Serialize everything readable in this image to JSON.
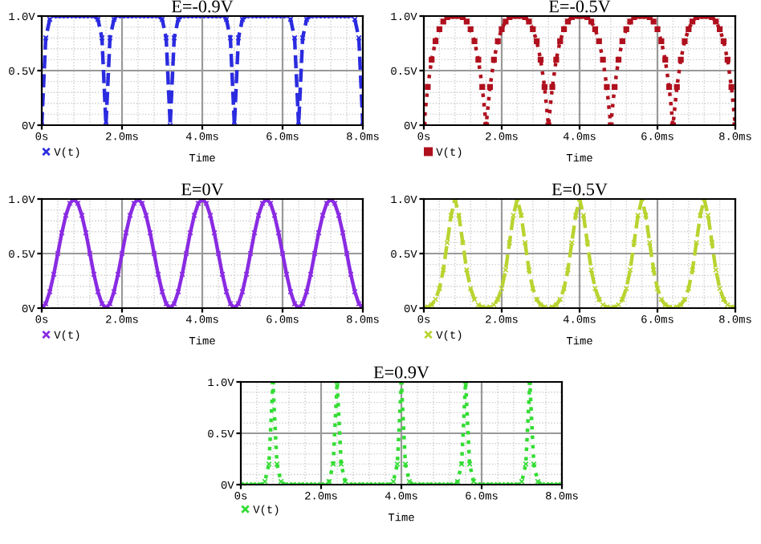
{
  "chart_data": [
    {
      "type": "line",
      "title": "E=-0.9V",
      "xlabel": "Time",
      "xlim": [
        0,
        8
      ],
      "ylim": [
        0,
        1
      ],
      "xticks": [
        {
          "value": 0,
          "label": "0s"
        },
        {
          "value": 2,
          "label": "2.0ms"
        },
        {
          "value": 4,
          "label": "4.0ms"
        },
        {
          "value": 6,
          "label": "6.0ms"
        },
        {
          "value": 8,
          "label": "8.0ms"
        }
      ],
      "yticks": [
        {
          "value": 0,
          "label": "0V"
        },
        {
          "value": 0.5,
          "label": "0.5V"
        },
        {
          "value": 1,
          "label": "1.0V"
        }
      ],
      "grid": true,
      "legend": "bottom left",
      "marker": "cross",
      "line_style": "dashed",
      "x": [
        0,
        0.1,
        0.2,
        0.3,
        0.4,
        0.5,
        0.6,
        0.7,
        0.8,
        0.9,
        1.0,
        1.1,
        1.2,
        1.3,
        1.4,
        1.5,
        1.6,
        1.7,
        1.8,
        1.9,
        2.0,
        2.1,
        2.2,
        2.3,
        2.4,
        2.5,
        2.6,
        2.7,
        2.8,
        2.9,
        3.0,
        3.1,
        3.2,
        3.3,
        3.4,
        3.5,
        3.6,
        3.7,
        3.8,
        3.9,
        4.0,
        4.1,
        4.2,
        4.3,
        4.4,
        4.5,
        4.6,
        4.7,
        4.8,
        4.9,
        5.0,
        5.1,
        5.2,
        5.3,
        5.4,
        5.5,
        5.6,
        5.7,
        5.8,
        5.9,
        6.0,
        6.1,
        6.2,
        6.3,
        6.4,
        6.5,
        6.6,
        6.7,
        6.8,
        6.9,
        7.0,
        7.1,
        7.2,
        7.3,
        7.4,
        7.5,
        7.6,
        7.7,
        7.8,
        7.9,
        8.0
      ],
      "series": [
        {
          "name": "V(t)",
          "color": "#2b2be0",
          "values": [
            0,
            0.8,
            0.97,
            1,
            1,
            1,
            1,
            1,
            1,
            1,
            1,
            1,
            1,
            1,
            0.97,
            0.8,
            0,
            0.8,
            0.97,
            1,
            1,
            1,
            1,
            1,
            1,
            1,
            1,
            1,
            1,
            1,
            0.97,
            0.8,
            0,
            0.8,
            0.97,
            1,
            1,
            1,
            1,
            1,
            1,
            1,
            1,
            1,
            1,
            1,
            0.97,
            0.8,
            0,
            0.8,
            0.97,
            1,
            1,
            1,
            1,
            1,
            1,
            1,
            1,
            1,
            1,
            1,
            0.97,
            0.8,
            0,
            0.8,
            0.97,
            1,
            1,
            1,
            1,
            1,
            1,
            1,
            1,
            1,
            1,
            1,
            0.97,
            0.8,
            0
          ]
        }
      ]
    },
    {
      "type": "line",
      "title": "E=-0.5V",
      "xlabel": "Time",
      "xlim": [
        0,
        8
      ],
      "ylim": [
        0,
        1
      ],
      "xticks": [
        {
          "value": 0,
          "label": "0s"
        },
        {
          "value": 2,
          "label": "2.0ms"
        },
        {
          "value": 4,
          "label": "4.0ms"
        },
        {
          "value": 6,
          "label": "6.0ms"
        },
        {
          "value": 8,
          "label": "8.0ms"
        }
      ],
      "yticks": [
        {
          "value": 0,
          "label": "0V"
        },
        {
          "value": 0.5,
          "label": "0.5V"
        },
        {
          "value": 1,
          "label": "1.0V"
        }
      ],
      "grid": true,
      "legend": "bottom left",
      "marker": "square",
      "line_style": "dotted",
      "x": [
        0,
        0.1,
        0.2,
        0.3,
        0.4,
        0.5,
        0.6,
        0.7,
        0.8,
        0.9,
        1.0,
        1.1,
        1.2,
        1.3,
        1.4,
        1.5,
        1.6,
        1.7,
        1.8,
        1.9,
        2.0,
        2.1,
        2.2,
        2.3,
        2.4,
        2.5,
        2.6,
        2.7,
        2.8,
        2.9,
        3.0,
        3.1,
        3.2,
        3.3,
        3.4,
        3.5,
        3.6,
        3.7,
        3.8,
        3.9,
        4.0,
        4.1,
        4.2,
        4.3,
        4.4,
        4.5,
        4.6,
        4.7,
        4.8,
        4.9,
        5.0,
        5.1,
        5.2,
        5.3,
        5.4,
        5.5,
        5.6,
        5.7,
        5.8,
        5.9,
        6.0,
        6.1,
        6.2,
        6.3,
        6.4,
        6.5,
        6.6,
        6.7,
        6.8,
        6.9,
        7.0,
        7.1,
        7.2,
        7.3,
        7.4,
        7.5,
        7.6,
        7.7,
        7.8,
        7.9,
        8.0
      ],
      "series": [
        {
          "name": "V(t)",
          "color": "#b0101e",
          "values": [
            0,
            0.35,
            0.6,
            0.77,
            0.88,
            0.95,
            0.99,
            1,
            1,
            1,
            0.99,
            0.95,
            0.88,
            0.77,
            0.6,
            0.35,
            0,
            0.35,
            0.6,
            0.77,
            0.88,
            0.95,
            0.99,
            1,
            1,
            1,
            0.99,
            0.95,
            0.88,
            0.77,
            0.6,
            0.35,
            0,
            0.35,
            0.6,
            0.77,
            0.88,
            0.95,
            0.99,
            1,
            1,
            1,
            0.99,
            0.95,
            0.88,
            0.77,
            0.6,
            0.35,
            0,
            0.35,
            0.6,
            0.77,
            0.88,
            0.95,
            0.99,
            1,
            1,
            1,
            0.99,
            0.95,
            0.88,
            0.77,
            0.6,
            0.35,
            0,
            0.35,
            0.6,
            0.77,
            0.88,
            0.95,
            0.99,
            1,
            1,
            1,
            0.99,
            0.95,
            0.88,
            0.77,
            0.6,
            0.35,
            0
          ]
        }
      ]
    },
    {
      "type": "line",
      "title": "E=0V",
      "xlabel": "Time",
      "xlim": [
        0,
        8
      ],
      "ylim": [
        0,
        1
      ],
      "xticks": [
        {
          "value": 0,
          "label": "0s"
        },
        {
          "value": 2,
          "label": "2.0ms"
        },
        {
          "value": 4,
          "label": "4.0ms"
        },
        {
          "value": 6,
          "label": "6.0ms"
        },
        {
          "value": 8,
          "label": "8.0ms"
        }
      ],
      "yticks": [
        {
          "value": 0,
          "label": "0V"
        },
        {
          "value": 0.5,
          "label": "0.5V"
        },
        {
          "value": 1,
          "label": "1.0V"
        }
      ],
      "grid": true,
      "legend": "bottom left",
      "marker": "cross",
      "line_style": "solid",
      "x": [
        0,
        0.1,
        0.2,
        0.3,
        0.4,
        0.5,
        0.6,
        0.7,
        0.8,
        0.9,
        1.0,
        1.1,
        1.2,
        1.3,
        1.4,
        1.5,
        1.6,
        1.7,
        1.8,
        1.9,
        2.0,
        2.1,
        2.2,
        2.3,
        2.4,
        2.5,
        2.6,
        2.7,
        2.8,
        2.9,
        3.0,
        3.1,
        3.2,
        3.3,
        3.4,
        3.5,
        3.6,
        3.7,
        3.8,
        3.9,
        4.0,
        4.1,
        4.2,
        4.3,
        4.4,
        4.5,
        4.6,
        4.7,
        4.8,
        4.9,
        5.0,
        5.1,
        5.2,
        5.3,
        5.4,
        5.5,
        5.6,
        5.7,
        5.8,
        5.9,
        6.0,
        6.1,
        6.2,
        6.3,
        6.4,
        6.5,
        6.6,
        6.7,
        6.8,
        6.9,
        7.0,
        7.1,
        7.2,
        7.3,
        7.4,
        7.5,
        7.6,
        7.7,
        7.8,
        7.9,
        8.0
      ],
      "series": [
        {
          "name": "V(t)",
          "color": "#8a2be2",
          "values": [
            0,
            0.04,
            0.15,
            0.31,
            0.5,
            0.69,
            0.85,
            0.96,
            1,
            0.96,
            0.85,
            0.69,
            0.5,
            0.31,
            0.15,
            0.04,
            0,
            0.04,
            0.15,
            0.31,
            0.5,
            0.69,
            0.85,
            0.96,
            1,
            0.96,
            0.85,
            0.69,
            0.5,
            0.31,
            0.15,
            0.04,
            0,
            0.04,
            0.15,
            0.31,
            0.5,
            0.69,
            0.85,
            0.96,
            1,
            0.96,
            0.85,
            0.69,
            0.5,
            0.31,
            0.15,
            0.04,
            0,
            0.04,
            0.15,
            0.31,
            0.5,
            0.69,
            0.85,
            0.96,
            1,
            0.96,
            0.85,
            0.69,
            0.5,
            0.31,
            0.15,
            0.04,
            0,
            0.04,
            0.15,
            0.31,
            0.5,
            0.69,
            0.85,
            0.96,
            1,
            0.96,
            0.85,
            0.69,
            0.5,
            0.31,
            0.15,
            0.04,
            0
          ]
        }
      ]
    },
    {
      "type": "line",
      "title": "E=0.5V",
      "xlabel": "Time",
      "xlim": [
        0,
        8
      ],
      "ylim": [
        0,
        1
      ],
      "xticks": [
        {
          "value": 0,
          "label": "0s"
        },
        {
          "value": 2,
          "label": "2.0ms"
        },
        {
          "value": 4,
          "label": "4.0ms"
        },
        {
          "value": 6,
          "label": "6.0ms"
        },
        {
          "value": 8,
          "label": "8.0ms"
        }
      ],
      "yticks": [
        {
          "value": 0,
          "label": "0V"
        },
        {
          "value": 0.5,
          "label": "0.5V"
        },
        {
          "value": 1,
          "label": "1.0V"
        }
      ],
      "grid": true,
      "legend": "bottom left",
      "marker": "cross",
      "line_style": "dashed",
      "x": [
        0,
        0.1,
        0.2,
        0.3,
        0.4,
        0.5,
        0.6,
        0.7,
        0.8,
        0.9,
        1.0,
        1.1,
        1.2,
        1.3,
        1.4,
        1.5,
        1.6,
        1.7,
        1.8,
        1.9,
        2.0,
        2.1,
        2.2,
        2.3,
        2.4,
        2.5,
        2.6,
        2.7,
        2.8,
        2.9,
        3.0,
        3.1,
        3.2,
        3.3,
        3.4,
        3.5,
        3.6,
        3.7,
        3.8,
        3.9,
        4.0,
        4.1,
        4.2,
        4.3,
        4.4,
        4.5,
        4.6,
        4.7,
        4.8,
        4.9,
        5.0,
        5.1,
        5.2,
        5.3,
        5.4,
        5.5,
        5.6,
        5.7,
        5.8,
        5.9,
        6.0,
        6.1,
        6.2,
        6.3,
        6.4,
        6.5,
        6.6,
        6.7,
        6.8,
        6.9,
        7.0,
        7.1,
        7.2,
        7.3,
        7.4,
        7.5,
        7.6,
        7.7,
        7.8,
        7.9,
        8.0
      ],
      "series": [
        {
          "name": "V(t)",
          "color": "#b8d430",
          "values": [
            0,
            0.01,
            0.03,
            0.08,
            0.18,
            0.35,
            0.6,
            0.85,
            1,
            0.85,
            0.6,
            0.35,
            0.18,
            0.08,
            0.03,
            0.01,
            0,
            0.01,
            0.03,
            0.08,
            0.18,
            0.35,
            0.6,
            0.85,
            1,
            0.85,
            0.6,
            0.35,
            0.18,
            0.08,
            0.03,
            0.01,
            0,
            0.01,
            0.03,
            0.08,
            0.18,
            0.35,
            0.6,
            0.85,
            1,
            0.85,
            0.6,
            0.35,
            0.18,
            0.08,
            0.03,
            0.01,
            0,
            0.01,
            0.03,
            0.08,
            0.18,
            0.35,
            0.6,
            0.85,
            1,
            0.85,
            0.6,
            0.35,
            0.18,
            0.08,
            0.03,
            0.01,
            0,
            0.01,
            0.03,
            0.08,
            0.18,
            0.35,
            0.6,
            0.85,
            1,
            0.85,
            0.6,
            0.35,
            0.18,
            0.08,
            0.03,
            0.01,
            0
          ]
        }
      ]
    },
    {
      "type": "line",
      "title": "E=0.9V",
      "xlabel": "Time",
      "xlim": [
        0,
        8
      ],
      "ylim": [
        0,
        1
      ],
      "xticks": [
        {
          "value": 0,
          "label": "0s"
        },
        {
          "value": 2,
          "label": "2.0ms"
        },
        {
          "value": 4,
          "label": "4.0ms"
        },
        {
          "value": 6,
          "label": "6.0ms"
        },
        {
          "value": 8,
          "label": "8.0ms"
        }
      ],
      "yticks": [
        {
          "value": 0,
          "label": "0V"
        },
        {
          "value": 0.5,
          "label": "0.5V"
        },
        {
          "value": 1,
          "label": "1.0V"
        }
      ],
      "grid": true,
      "legend": "bottom left",
      "marker": "cross",
      "line_style": "dotted",
      "x": [
        0,
        0.1,
        0.2,
        0.3,
        0.4,
        0.5,
        0.6,
        0.7,
        0.8,
        0.9,
        1.0,
        1.1,
        1.2,
        1.3,
        1.4,
        1.5,
        1.6,
        1.7,
        1.8,
        1.9,
        2.0,
        2.1,
        2.2,
        2.3,
        2.4,
        2.5,
        2.6,
        2.7,
        2.8,
        2.9,
        3.0,
        3.1,
        3.2,
        3.3,
        3.4,
        3.5,
        3.6,
        3.7,
        3.8,
        3.9,
        4.0,
        4.1,
        4.2,
        4.3,
        4.4,
        4.5,
        4.6,
        4.7,
        4.8,
        4.9,
        5.0,
        5.1,
        5.2,
        5.3,
        5.4,
        5.5,
        5.6,
        5.7,
        5.8,
        5.9,
        6.0,
        6.1,
        6.2,
        6.3,
        6.4,
        6.5,
        6.6,
        6.7,
        6.8,
        6.9,
        7.0,
        7.1,
        7.2,
        7.3,
        7.4,
        7.5,
        7.6,
        7.7,
        7.8,
        7.9,
        8.0
      ],
      "series": [
        {
          "name": "V(t)",
          "color": "#33dd33",
          "values": [
            0,
            0,
            0,
            0,
            0,
            0,
            0.03,
            0.2,
            1,
            0.2,
            0.03,
            0,
            0,
            0,
            0,
            0,
            0,
            0,
            0,
            0,
            0,
            0,
            0.03,
            0.2,
            1,
            0.2,
            0.03,
            0,
            0,
            0,
            0,
            0,
            0,
            0,
            0,
            0,
            0,
            0,
            0.03,
            0.2,
            1,
            0.2,
            0.03,
            0,
            0,
            0,
            0,
            0,
            0,
            0,
            0,
            0,
            0,
            0,
            0.03,
            0.2,
            1,
            0.2,
            0.03,
            0,
            0,
            0,
            0,
            0,
            0,
            0,
            0,
            0,
            0,
            0,
            0.03,
            0.2,
            1,
            0.2,
            0.03,
            0,
            0,
            0,
            0,
            0,
            0
          ]
        }
      ]
    }
  ]
}
